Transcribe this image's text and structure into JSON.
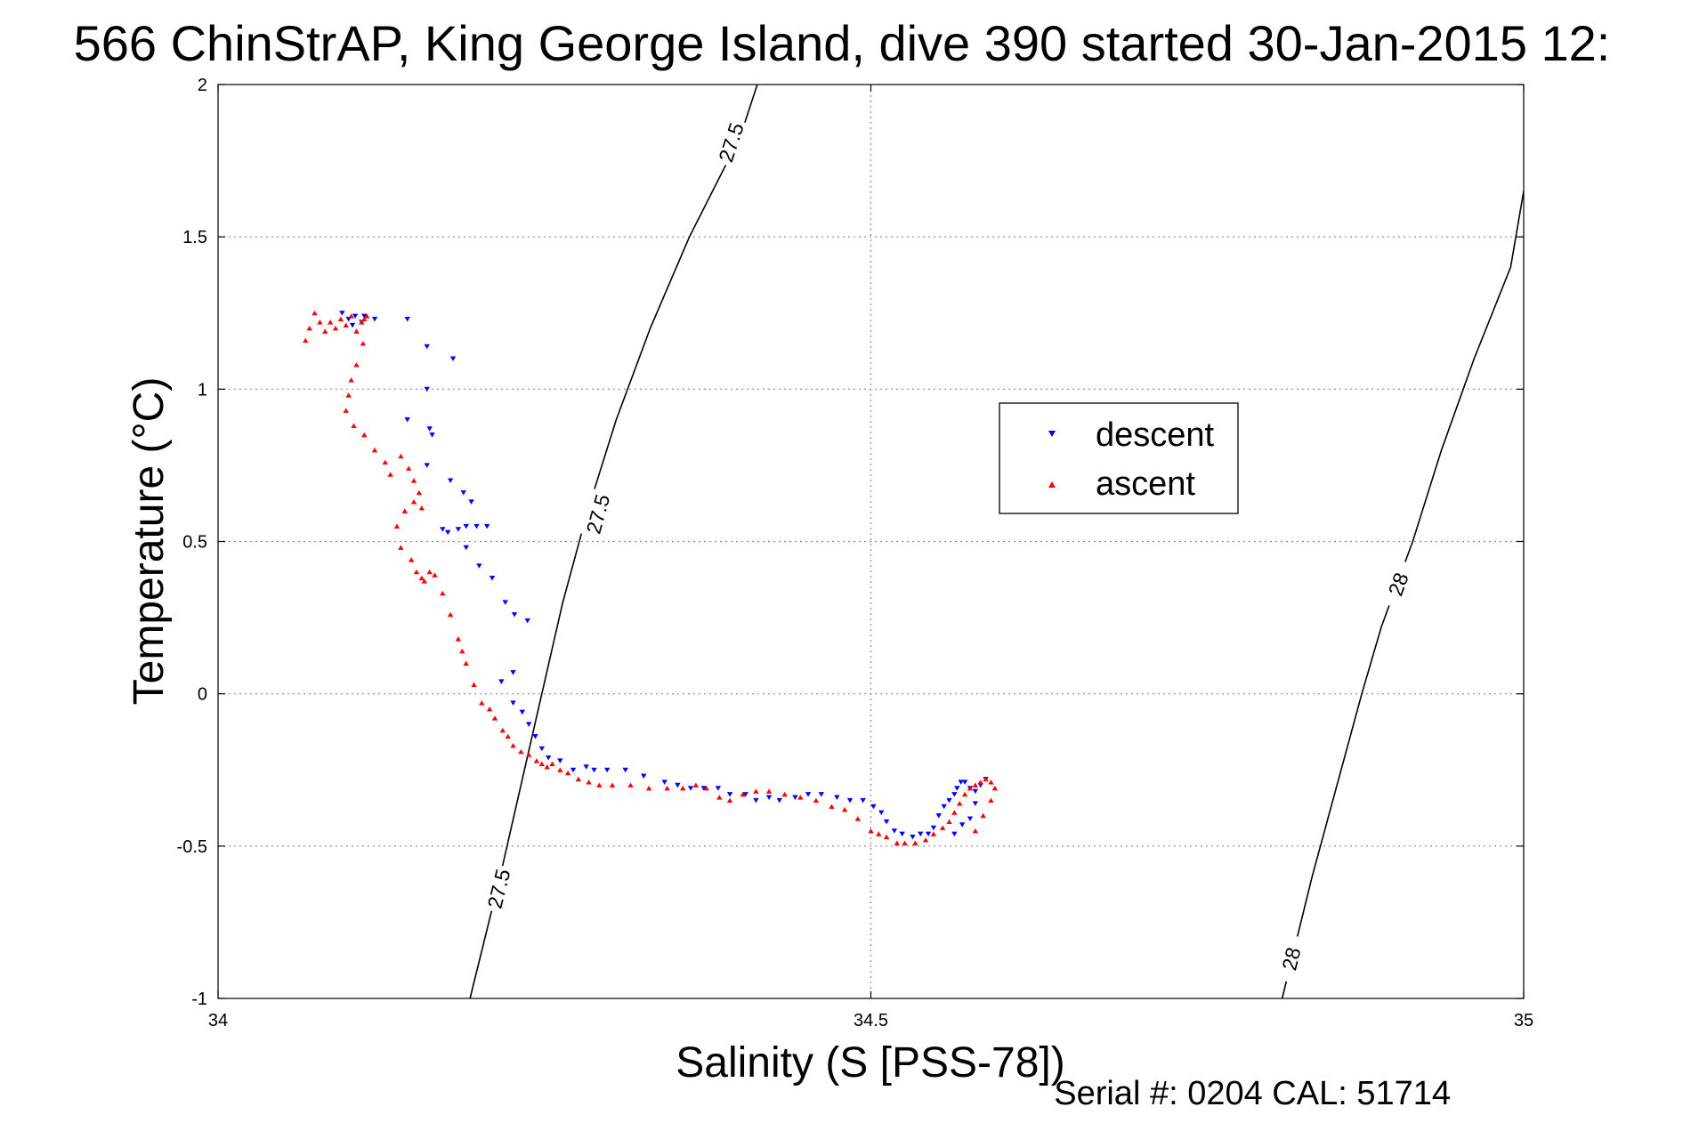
{
  "chart_data": {
    "type": "scatter",
    "title": "566 ChinStrAP, King George Island, dive 390 started 30-Jan-2015 12:",
    "xlabel": "Salinity (S [PSS-78])",
    "ylabel": "Temperature (°C)",
    "xlim": [
      34,
      35
    ],
    "ylim": [
      -1,
      2
    ],
    "x_ticks": [
      34,
      34.5,
      35
    ],
    "y_ticks": [
      -1,
      -0.5,
      0,
      0.5,
      1,
      1.5,
      2
    ],
    "x_tick_labels": [
      "34",
      "34.5",
      "35"
    ],
    "y_tick_labels": [
      "-1",
      "-0.5",
      "0",
      "0.5",
      "1",
      "1.5",
      "2"
    ],
    "grid": true,
    "legend_position": "center-right",
    "footer": "Serial #: 0204  CAL: 51714",
    "series": [
      {
        "name": "descent",
        "color": "#0000ff",
        "marker": "triangle-down",
        "x": [
          34.095,
          34.1,
          34.105,
          34.11,
          34.103,
          34.112,
          34.12,
          34.145,
          34.16,
          34.18,
          34.16,
          34.145,
          34.162,
          34.164,
          34.16,
          34.178,
          34.188,
          34.194,
          34.172,
          34.176,
          34.184,
          34.19,
          34.198,
          34.206,
          34.19,
          34.2,
          34.21,
          34.22,
          34.227,
          34.237,
          34.226,
          34.217,
          34.226,
          34.233,
          34.238,
          34.243,
          34.248,
          34.253,
          34.262,
          34.272,
          34.282,
          34.288,
          34.298,
          34.312,
          34.326,
          34.342,
          34.352,
          34.362,
          34.372,
          34.383,
          34.392,
          34.404,
          34.412,
          34.422,
          34.43,
          34.442,
          34.452,
          34.462,
          34.474,
          34.484,
          34.494,
          34.502,
          34.508,
          34.512,
          34.518,
          34.524,
          34.532,
          34.538,
          34.544,
          34.548,
          34.552,
          34.556,
          34.56,
          34.564,
          34.566,
          34.569,
          34.572,
          34.576,
          34.58,
          34.584,
          34.588,
          34.58,
          34.576,
          34.57,
          34.564
        ],
        "y": [
          1.25,
          1.23,
          1.24,
          1.22,
          1.21,
          1.24,
          1.23,
          1.23,
          1.14,
          1.1,
          1.0,
          0.9,
          0.87,
          0.85,
          0.75,
          0.7,
          0.66,
          0.63,
          0.54,
          0.53,
          0.54,
          0.55,
          0.55,
          0.55,
          0.48,
          0.42,
          0.38,
          0.3,
          0.26,
          0.24,
          0.07,
          0.04,
          -0.03,
          -0.06,
          -0.1,
          -0.14,
          -0.18,
          -0.21,
          -0.22,
          -0.25,
          -0.24,
          -0.25,
          -0.25,
          -0.25,
          -0.27,
          -0.29,
          -0.3,
          -0.31,
          -0.31,
          -0.31,
          -0.33,
          -0.33,
          -0.35,
          -0.34,
          -0.35,
          -0.34,
          -0.33,
          -0.33,
          -0.34,
          -0.35,
          -0.35,
          -0.37,
          -0.39,
          -0.42,
          -0.45,
          -0.46,
          -0.47,
          -0.46,
          -0.46,
          -0.44,
          -0.4,
          -0.37,
          -0.35,
          -0.33,
          -0.31,
          -0.29,
          -0.29,
          -0.31,
          -0.32,
          -0.3,
          -0.28,
          -0.36,
          -0.41,
          -0.43,
          -0.46
        ]
      },
      {
        "name": "ascent",
        "color": "#ff0000",
        "marker": "triangle-up",
        "x": [
          34.067,
          34.07,
          34.074,
          34.078,
          34.082,
          34.086,
          34.09,
          34.094,
          34.098,
          34.102,
          34.106,
          34.11,
          34.112,
          34.114,
          34.111,
          34.106,
          34.102,
          34.1,
          34.098,
          34.104,
          34.112,
          34.12,
          34.128,
          34.132,
          34.14,
          34.146,
          34.15,
          34.154,
          34.156,
          34.15,
          34.143,
          34.137,
          34.14,
          34.148,
          34.152,
          34.156,
          34.158,
          34.162,
          34.166,
          34.172,
          34.178,
          34.184,
          34.187,
          34.19,
          34.196,
          34.202,
          34.208,
          34.212,
          34.218,
          34.222,
          34.226,
          34.232,
          34.238,
          34.244,
          34.248,
          34.252,
          34.256,
          34.262,
          34.268,
          34.276,
          34.284,
          34.292,
          34.302,
          34.316,
          34.33,
          34.344,
          34.356,
          34.366,
          34.374,
          34.384,
          34.392,
          34.402,
          34.412,
          34.422,
          34.434,
          34.446,
          34.458,
          34.47,
          34.48,
          34.49,
          34.5,
          34.506,
          34.512,
          34.52,
          34.526,
          34.534,
          34.542,
          34.548,
          34.555,
          34.56,
          34.564,
          34.568,
          34.572,
          34.576,
          34.58,
          34.584,
          34.588,
          34.592,
          34.595,
          34.592,
          34.586,
          34.58
        ],
        "y": [
          1.16,
          1.2,
          1.25,
          1.22,
          1.19,
          1.22,
          1.2,
          1.23,
          1.21,
          1.24,
          1.19,
          1.22,
          1.23,
          1.24,
          1.15,
          1.08,
          1.03,
          0.98,
          0.93,
          0.88,
          0.85,
          0.8,
          0.76,
          0.72,
          0.78,
          0.74,
          0.7,
          0.66,
          0.61,
          0.63,
          0.6,
          0.55,
          0.48,
          0.44,
          0.4,
          0.38,
          0.37,
          0.4,
          0.39,
          0.33,
          0.26,
          0.18,
          0.14,
          0.1,
          0.03,
          -0.03,
          -0.05,
          -0.08,
          -0.12,
          -0.14,
          -0.17,
          -0.19,
          -0.2,
          -0.22,
          -0.23,
          -0.24,
          -0.23,
          -0.25,
          -0.26,
          -0.28,
          -0.29,
          -0.3,
          -0.3,
          -0.3,
          -0.31,
          -0.31,
          -0.31,
          -0.3,
          -0.31,
          -0.34,
          -0.35,
          -0.33,
          -0.32,
          -0.32,
          -0.33,
          -0.34,
          -0.35,
          -0.37,
          -0.38,
          -0.41,
          -0.45,
          -0.46,
          -0.47,
          -0.49,
          -0.49,
          -0.49,
          -0.48,
          -0.46,
          -0.44,
          -0.42,
          -0.39,
          -0.36,
          -0.33,
          -0.31,
          -0.3,
          -0.29,
          -0.28,
          -0.29,
          -0.31,
          -0.35,
          -0.4,
          -0.45
        ]
      }
    ],
    "contours": [
      {
        "level": "27.5",
        "points": [
          [
            34.193,
            -1
          ],
          [
            34.216,
            -0.6
          ],
          [
            34.232,
            -0.3
          ],
          [
            34.248,
            0
          ],
          [
            34.264,
            0.3
          ],
          [
            34.283,
            0.6
          ],
          [
            34.305,
            0.9
          ],
          [
            34.331,
            1.2
          ],
          [
            34.361,
            1.5
          ],
          [
            34.4,
            1.83
          ],
          [
            34.413,
            2.0
          ]
        ],
        "labels": [
          {
            "x": 34.215,
            "y": -0.64
          },
          {
            "x": 34.291,
            "y": 0.59
          },
          {
            "x": 34.393,
            "y": 1.81
          }
        ]
      },
      {
        "level": "28",
        "points": [
          [
            34.815,
            -1
          ],
          [
            34.838,
            -0.6
          ],
          [
            34.857,
            -0.3
          ],
          [
            34.876,
            0
          ],
          [
            34.891,
            0.22
          ],
          [
            34.915,
            0.5
          ],
          [
            34.937,
            0.8
          ],
          [
            34.962,
            1.1
          ],
          [
            34.99,
            1.4
          ],
          [
            35.0,
            1.65
          ]
        ],
        "labels": [
          {
            "x": 34.822,
            "y": -0.87
          },
          {
            "x": 34.904,
            "y": 0.36
          }
        ]
      }
    ]
  }
}
